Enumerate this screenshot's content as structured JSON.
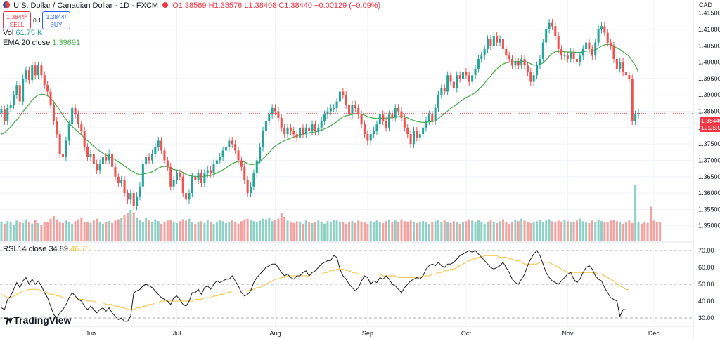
{
  "header": {
    "symbol_title": "U.S. Dollar / Canadian Dollar · 1D · FXCM",
    "ohlc_text": "O1.38569 H1.38576 L1.38408 C1.38440 −0.00129 (−0.09%)",
    "sell_price": "1.3844⁰",
    "sell_label": "SELL",
    "spread": "0.1",
    "buy_price": "1.3844¹",
    "buy_label": "BUY",
    "vol_label": "Vol",
    "vol_value": "61.75 K",
    "ema_label": "EMA 20 close",
    "ema_value": "1.39691",
    "rsi_label": "RSI 14 close",
    "rsi_value": "34.89",
    "rsi_ma_value": "46.75"
  },
  "price_axis": {
    "currency": "CAD",
    "current_price": "1.38440",
    "countdown": "12:25:00"
  },
  "branding": {
    "logo_text": "TradingView"
  },
  "colors": {
    "up": "#26a69a",
    "down": "#ef5350",
    "up_volume": "#8fd0c7",
    "down_volume": "#f4a2a0",
    "ema": "#4caf50",
    "rsi": "#1e1e1e",
    "rsi_ma": "#f5c242",
    "grid": "#f0f3fa"
  },
  "chart_data": {
    "type": "candlestick",
    "title": "U.S. Dollar / Canadian Dollar · 1D · FXCM",
    "x_tick_labels": [
      {
        "label": "Jun",
        "index": 29
      },
      {
        "label": "Jul",
        "index": 57
      },
      {
        "label": "Aug",
        "index": 89
      },
      {
        "label": "Sep",
        "index": 119
      },
      {
        "label": "Oct",
        "index": 151
      },
      {
        "label": "Nov",
        "index": 184
      },
      {
        "label": "Dec",
        "index": 212
      }
    ],
    "price_range": [
      1.345,
      1.419
    ],
    "price_ticks": [
      "1.41500",
      "1.41000",
      "1.40500",
      "1.40000",
      "1.39500",
      "1.39000",
      "1.38500",
      "1.38000",
      "1.37500",
      "1.37000",
      "1.36500",
      "1.36000",
      "1.35500",
      "1.35000"
    ],
    "rsi_range": [
      25,
      75
    ],
    "rsi_ticks": [
      "70.00",
      "60.00",
      "50.00",
      "40.00",
      "30.00"
    ],
    "rsi_levels": [
      70,
      50,
      30
    ],
    "closes": [
      1.3855,
      1.382,
      1.386,
      1.387,
      1.39,
      1.393,
      1.388,
      1.395,
      1.3975,
      1.3945,
      1.399,
      1.396,
      1.399,
      1.396,
      1.393,
      1.391,
      1.387,
      1.382,
      1.378,
      1.372,
      1.371,
      1.376,
      1.381,
      1.386,
      1.384,
      1.381,
      1.379,
      1.374,
      1.371,
      1.372,
      1.369,
      1.367,
      1.369,
      1.371,
      1.37,
      1.372,
      1.368,
      1.365,
      1.363,
      1.364,
      1.36,
      1.358,
      1.36,
      1.356,
      1.359,
      1.362,
      1.369,
      1.371,
      1.37,
      1.372,
      1.374,
      1.376,
      1.373,
      1.37,
      1.368,
      1.362,
      1.364,
      1.366,
      1.365,
      1.36,
      1.358,
      1.36,
      1.365,
      1.364,
      1.366,
      1.363,
      1.366,
      1.367,
      1.366,
      1.369,
      1.37,
      1.371,
      1.373,
      1.374,
      1.376,
      1.375,
      1.373,
      1.37,
      1.368,
      1.364,
      1.36,
      1.362,
      1.366,
      1.37,
      1.374,
      1.379,
      1.382,
      1.384,
      1.386,
      1.385,
      1.383,
      1.38,
      1.378,
      1.38,
      1.379,
      1.378,
      1.377,
      1.38,
      1.378,
      1.38,
      1.379,
      1.381,
      1.379,
      1.38,
      1.382,
      1.384,
      1.385,
      1.386,
      1.386,
      1.388,
      1.391,
      1.39,
      1.387,
      1.384,
      1.387,
      1.386,
      1.384,
      1.381,
      1.378,
      1.376,
      1.378,
      1.379,
      1.381,
      1.384,
      1.382,
      1.38,
      1.384,
      1.383,
      1.386,
      1.385,
      1.383,
      1.38,
      1.378,
      1.375,
      1.379,
      1.377,
      1.378,
      1.38,
      1.382,
      1.384,
      1.382,
      1.386,
      1.39,
      1.392,
      1.391,
      1.396,
      1.394,
      1.392,
      1.396,
      1.395,
      1.397,
      1.396,
      1.394,
      1.396,
      1.398,
      1.401,
      1.402,
      1.404,
      1.407,
      1.405,
      1.408,
      1.406,
      1.407,
      1.404,
      1.402,
      1.401,
      1.399,
      1.4,
      1.399,
      1.401,
      1.399,
      1.397,
      1.394,
      1.396,
      1.399,
      1.401,
      1.406,
      1.41,
      1.412,
      1.411,
      1.408,
      1.404,
      1.402,
      1.402,
      1.401,
      1.403,
      1.401,
      1.4,
      1.402,
      1.404,
      1.406,
      1.404,
      1.402,
      1.406,
      1.41,
      1.411,
      1.409,
      1.406,
      1.405,
      1.401,
      1.398,
      1.4,
      1.397,
      1.396,
      1.395,
      1.382,
      1.384,
      1.3844
    ],
    "ema_20": [
      1.378,
      1.3784,
      1.3793,
      1.3802,
      1.3814,
      1.3824,
      1.3835,
      1.3849,
      1.386,
      1.3872,
      1.3884,
      1.3893,
      1.39,
      1.3902,
      1.3901,
      1.3897,
      1.389,
      1.3878,
      1.3866,
      1.3853,
      1.3838,
      1.3825,
      1.3813,
      1.3803,
      1.3795,
      1.3787,
      1.3778,
      1.3768,
      1.376,
      1.3752,
      1.3743,
      1.3735,
      1.3728,
      1.3722,
      1.3716,
      1.3712,
      1.3707,
      1.3702,
      1.3695,
      1.369,
      1.3683,
      1.3676,
      1.367,
      1.3664,
      1.3659,
      1.3656,
      1.3658,
      1.366,
      1.3662,
      1.3665,
      1.367,
      1.3676,
      1.368,
      1.3682,
      1.3681,
      1.3676,
      1.3672,
      1.367,
      1.3668,
      1.3663,
      1.3657,
      1.3653,
      1.3652,
      1.365,
      1.3651,
      1.365,
      1.3651,
      1.3653,
      1.3654,
      1.3657,
      1.3661,
      1.3666,
      1.3671,
      1.3677,
      1.3684,
      1.369,
      1.3694,
      1.3697,
      1.3697,
      1.3695,
      1.369,
      1.3687,
      1.3688,
      1.369,
      1.3696,
      1.3705,
      1.3714,
      1.3724,
      1.3735,
      1.3744,
      1.375,
      1.3755,
      1.376,
      1.3764,
      1.3768,
      1.3771,
      1.3775,
      1.3778,
      1.378,
      1.3782,
      1.3784,
      1.3786,
      1.3787,
      1.3789,
      1.3792,
      1.3796,
      1.38,
      1.3806,
      1.3812,
      1.3818,
      1.3826,
      1.3833,
      1.3836,
      1.3838,
      1.3841,
      1.3843,
      1.3843,
      1.3841,
      1.3838,
      1.3834,
      1.3831,
      1.3829,
      1.3828,
      1.3829,
      1.3829,
      1.3828,
      1.383,
      1.383,
      1.3832,
      1.3834,
      1.3834,
      1.3833,
      1.383,
      1.3825,
      1.3822,
      1.3819,
      1.3817,
      1.3816,
      1.3816,
      1.3818,
      1.3818,
      1.3821,
      1.3828,
      1.3836,
      1.3842,
      1.3851,
      1.3859,
      1.3864,
      1.3872,
      1.3878,
      1.3886,
      1.3892,
      1.3896,
      1.3901,
      1.3907,
      1.3916,
      1.3925,
      1.3936,
      1.3948,
      1.3958,
      1.397,
      1.3979,
      1.3988,
      1.3994,
      1.3998,
      1.4,
      1.4001,
      1.4002,
      1.4002,
      1.4003,
      1.4002,
      1.4,
      1.3995,
      1.3991,
      1.3991,
      1.3993,
      1.3998,
      1.4007,
      1.4018,
      1.4027,
      1.4032,
      1.4033,
      1.4033,
      1.4032,
      1.4031,
      1.4031,
      1.4031,
      1.403,
      1.403,
      1.4031,
      1.4034,
      1.4035,
      1.4034,
      1.4037,
      1.4043,
      1.4049,
      1.4053,
      1.4054,
      1.4054,
      1.405,
      1.4043,
      1.4039,
      1.4032,
      1.4025,
      1.4018,
      1.4003,
      1.399,
      1.3969
    ],
    "volume_range": [
      0,
      100
    ],
    "volumes": [
      30,
      28,
      32,
      30,
      27,
      33,
      31,
      29,
      35,
      30,
      28,
      34,
      29,
      26,
      31,
      30,
      36,
      40,
      35,
      31,
      29,
      33,
      30,
      28,
      32,
      35,
      38,
      31,
      30,
      29,
      33,
      36,
      31,
      28,
      30,
      32,
      29,
      33,
      35,
      37,
      41,
      45,
      50,
      46,
      38,
      34,
      31,
      37,
      33,
      30,
      35,
      32,
      28,
      31,
      33,
      34,
      30,
      29,
      32,
      35,
      33,
      36,
      31,
      28,
      30,
      32,
      29,
      33,
      31,
      28,
      30,
      34,
      32,
      29,
      31,
      33,
      30,
      28,
      32,
      35,
      36,
      34,
      32,
      30,
      33,
      36,
      35,
      37,
      32,
      34,
      36,
      45,
      39,
      33,
      31,
      29,
      32,
      30,
      28,
      33,
      31,
      29,
      30,
      33,
      31,
      28,
      32,
      30,
      34,
      33,
      31,
      30,
      28,
      30,
      32,
      29,
      33,
      31,
      30,
      28,
      32,
      30,
      33,
      31,
      29,
      32,
      34,
      30,
      33,
      31,
      35,
      32,
      30,
      33,
      31,
      29,
      30,
      32,
      31,
      28,
      30,
      32,
      34,
      31,
      33,
      30,
      29,
      32,
      31,
      28,
      30,
      32,
      35,
      33,
      31,
      34,
      30,
      28,
      30,
      33,
      31,
      29,
      32,
      35,
      30,
      28,
      31,
      34,
      32,
      36,
      33,
      31,
      29,
      30,
      32,
      34,
      31,
      33,
      35,
      32,
      30,
      33,
      31,
      34,
      32,
      30,
      31,
      33,
      36,
      32,
      30,
      29,
      33,
      31,
      35,
      32,
      30,
      31,
      33,
      34,
      32,
      30,
      28,
      31,
      33,
      29,
      90,
      30,
      28,
      31,
      29,
      55,
      33,
      30,
      30
    ],
    "rsi_14": [
      36,
      35,
      41,
      43,
      47,
      51,
      48,
      52,
      54,
      50,
      53,
      50,
      52,
      49,
      45,
      42,
      37,
      32,
      30,
      33,
      35,
      38,
      42,
      45,
      43,
      41,
      40,
      37,
      35,
      37,
      35,
      33,
      35,
      36,
      34,
      36,
      33,
      31,
      29,
      30,
      28,
      28,
      31,
      45,
      46,
      47,
      49,
      50,
      49,
      48,
      46,
      44,
      42,
      41,
      40,
      38,
      42,
      43,
      41,
      38,
      37,
      40,
      45,
      45,
      47,
      44,
      48,
      49,
      47,
      50,
      52,
      51,
      52,
      53,
      53,
      55,
      52,
      49,
      45,
      43,
      44,
      46,
      51,
      54,
      56,
      58,
      60,
      61,
      62,
      62,
      60,
      57,
      55,
      56,
      54,
      53,
      55,
      55,
      57,
      58,
      55,
      57,
      58,
      60,
      62,
      63,
      64,
      64,
      67,
      66,
      59,
      55,
      53,
      50,
      48,
      46,
      48,
      52,
      55,
      54,
      50,
      52,
      51,
      54,
      53,
      55,
      53,
      50,
      49,
      47,
      45,
      48,
      50,
      52,
      53,
      54,
      53,
      55,
      59,
      61,
      62,
      61,
      63,
      61,
      60,
      62,
      62,
      63,
      65,
      67,
      68,
      69,
      70,
      69,
      70,
      68,
      66,
      64,
      62,
      60,
      59,
      60,
      61,
      63,
      60,
      57,
      53,
      51,
      50,
      53,
      56,
      61,
      65,
      68,
      70,
      67,
      62,
      57,
      54,
      52,
      51,
      50,
      52,
      54,
      56,
      57,
      53,
      51,
      53,
      57,
      60,
      61,
      59,
      55,
      53,
      52,
      48,
      45,
      42,
      41,
      40,
      31,
      35,
      34.9
    ],
    "rsi_ma": [
      44,
      43,
      42,
      42,
      43,
      44,
      45,
      46,
      46,
      47,
      47,
      47,
      47,
      46,
      46,
      45,
      44,
      44,
      43,
      43,
      42,
      42,
      42,
      42,
      42,
      41,
      41,
      41,
      40,
      40,
      40,
      39,
      39,
      39,
      38,
      38,
      38,
      37,
      37,
      36,
      36,
      35,
      35,
      35,
      36,
      36,
      37,
      37,
      38,
      38,
      39,
      39,
      40,
      40,
      40,
      40,
      40,
      40,
      40,
      40,
      40,
      40,
      40,
      41,
      41,
      41,
      42,
      42,
      42,
      43,
      43,
      44,
      44,
      45,
      45,
      46,
      46,
      46,
      46,
      46,
      46,
      47,
      47,
      48,
      48,
      49,
      50,
      51,
      52,
      53,
      53,
      54,
      54,
      55,
      55,
      55,
      55,
      55,
      55,
      55,
      55,
      56,
      56,
      56,
      56,
      57,
      57,
      58,
      58,
      59,
      59,
      59,
      58,
      58,
      57,
      57,
      56,
      56,
      56,
      56,
      56,
      56,
      56,
      56,
      55,
      55,
      55,
      55,
      55,
      54,
      54,
      54,
      54,
      54,
      54,
      54,
      54,
      55,
      55,
      55,
      56,
      56,
      57,
      57,
      58,
      58,
      59,
      59,
      60,
      61,
      62,
      63,
      64,
      65,
      65,
      66,
      66,
      67,
      67,
      67,
      67,
      67,
      66,
      66,
      66,
      65,
      65,
      64,
      64,
      63,
      62,
      62,
      62,
      62,
      62,
      63,
      63,
      63,
      63,
      62,
      61,
      60,
      59,
      58,
      57,
      57,
      57,
      57,
      57,
      57,
      57,
      57,
      57,
      57,
      56,
      56,
      55,
      54,
      53,
      52,
      50,
      49,
      48,
      47,
      46.75
    ]
  }
}
